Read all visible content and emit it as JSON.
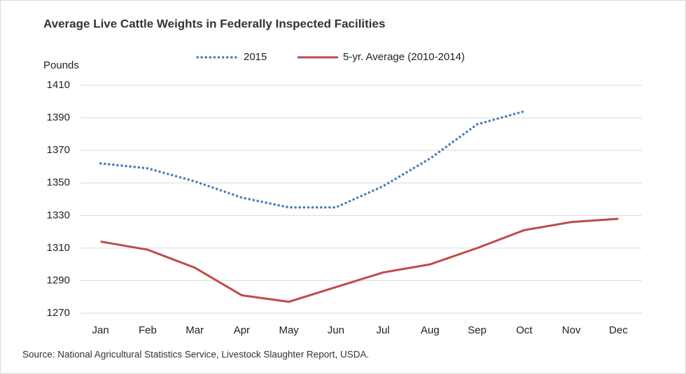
{
  "chart_data": {
    "type": "line",
    "title": "Average Live Cattle Weights in Federally Inspected Facilities",
    "y_label": "Pounds",
    "source": "Source: National Agricultural Statistics Service, Livestock Slaughter Report, USDA.",
    "categories": [
      "Jan",
      "Feb",
      "Mar",
      "Apr",
      "May",
      "Jun",
      "Jul",
      "Aug",
      "Sep",
      "Oct",
      "Nov",
      "Dec"
    ],
    "series": [
      {
        "name": "2015",
        "color": "#4a7ebb",
        "style": "dotted",
        "values": [
          1362,
          1359,
          1351,
          1341,
          1335,
          1335,
          1348,
          1365,
          1386,
          1394,
          null,
          null
        ]
      },
      {
        "name": "5-yr. Average (2010-2014)",
        "color": "#be4b48",
        "style": "solid",
        "values": [
          1314,
          1309,
          1298,
          1281,
          1277,
          1286,
          1295,
          1300,
          1310,
          1321,
          1326,
          1328
        ]
      }
    ],
    "ylim": [
      1270,
      1410
    ],
    "yticks": [
      1270,
      1290,
      1310,
      1330,
      1350,
      1370,
      1390,
      1410
    ],
    "grid": true,
    "legend": "top"
  }
}
